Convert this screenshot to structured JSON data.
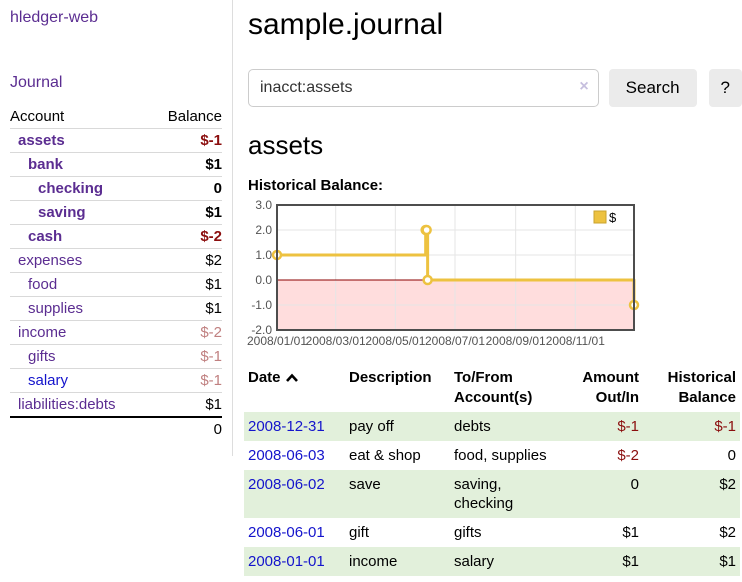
{
  "colors": {
    "purple": "#5b2d91",
    "blue_link": "#1414cc",
    "maroon": "#8b0e0e",
    "rose": "#c08080",
    "lavender": "#c6bfde",
    "stripe_green": "#e2f0db",
    "chart_gold": "#EDC240",
    "chart_gold_border": "#c9a32e",
    "chart_border": "#4d4d4d",
    "gridline": "#e5e5e5",
    "tick_text": "#545454",
    "negative_fill": "#ffdddd",
    "zero_line": "#8b0000"
  },
  "sidebar": {
    "app_title": "hledger-web",
    "journal_link": "Journal",
    "accounts_header": {
      "account": "Account",
      "balance": "Balance"
    },
    "accounts": [
      {
        "name": "assets",
        "indent": 1,
        "bold": true,
        "balance": "$-1",
        "balance_color": "maroon"
      },
      {
        "name": "bank",
        "indent": 2,
        "bold": true,
        "balance": "$1"
      },
      {
        "name": "checking",
        "indent": 3,
        "bold": true,
        "balance": "0"
      },
      {
        "name": "saving",
        "indent": 3,
        "bold": true,
        "balance": "$1"
      },
      {
        "name": "cash",
        "indent": 2,
        "bold": true,
        "balance": "$-2",
        "balance_color": "maroon"
      },
      {
        "name": "expenses",
        "indent": 1,
        "bold": false,
        "balance": "$2"
      },
      {
        "name": "food",
        "indent": 2,
        "bold": false,
        "balance": "$1"
      },
      {
        "name": "supplies",
        "indent": 2,
        "bold": false,
        "balance": "$1"
      },
      {
        "name": "income",
        "indent": 1,
        "bold": false,
        "balance": "$-2",
        "balance_color": "rose"
      },
      {
        "name": "gifts",
        "indent": 2,
        "bold": false,
        "balance": "$-1",
        "balance_color": "rose"
      },
      {
        "name": "salary",
        "indent": 2,
        "bold": false,
        "balance": "$-1",
        "balance_color": "rose",
        "link_color": "blue"
      },
      {
        "name": "liabilities:debts",
        "indent": 1,
        "bold": false,
        "balance": "$1"
      }
    ],
    "total": "0"
  },
  "main": {
    "title": "sample.journal",
    "search": {
      "value": "inacct:assets",
      "clear_icon": "×",
      "button_label": "Search",
      "help_label": "?"
    },
    "account_heading": "assets",
    "chart_label": "Historical Balance:"
  },
  "chart_data": {
    "type": "line",
    "step": true,
    "title": "Historical Balance",
    "xlim": [
      "2008-01-01",
      "2008-12-31"
    ],
    "ylim": [
      -2,
      3
    ],
    "series": [
      {
        "name": "$",
        "color": "#EDC240",
        "points": [
          [
            "2008-01-01",
            1
          ],
          [
            "2008-06-01",
            2
          ],
          [
            "2008-06-02",
            2
          ],
          [
            "2008-06-03",
            0
          ],
          [
            "2008-12-31",
            -1
          ]
        ]
      }
    ],
    "x_ticks": [
      {
        "date": "2008-01-01",
        "label": "2008/01/01"
      },
      {
        "date": "2008-03-01",
        "label": "2008/03/01"
      },
      {
        "date": "2008-05-01",
        "label": "2008/05/01"
      },
      {
        "date": "2008-07-01",
        "label": "2008/07/01"
      },
      {
        "date": "2008-09-01",
        "label": "2008/09/01"
      },
      {
        "date": "2008-11-01",
        "label": "2008/11/01"
      }
    ],
    "y_ticks": [
      {
        "v": 3,
        "label": "3.0"
      },
      {
        "v": 2,
        "label": "2.0"
      },
      {
        "v": 1,
        "label": "1.0"
      },
      {
        "v": 0,
        "label": "0.0"
      },
      {
        "v": -1,
        "label": "-1.0"
      },
      {
        "v": -2,
        "label": "-2.0"
      }
    ],
    "legend": {
      "label": "$",
      "position": "top-right"
    },
    "grid": true
  },
  "register": {
    "headers": [
      {
        "l1": "Date",
        "l2": ""
      },
      {
        "l1": "Description",
        "l2": ""
      },
      {
        "l1": "To/From",
        "l2": "Account(s)"
      },
      {
        "l1": "Amount",
        "l2": "Out/In"
      },
      {
        "l1": "Historical",
        "l2": "Balance"
      }
    ],
    "sort_icon": "chevron-up",
    "rows": [
      {
        "date": "2008-12-31",
        "description": "pay off",
        "accounts": "debts",
        "amount": "$-1",
        "amount_color": "maroon",
        "balance": "$-1",
        "balance_color": "maroon"
      },
      {
        "date": "2008-06-03",
        "description": "eat & shop",
        "accounts": "food, supplies",
        "amount": "$-2",
        "amount_color": "maroon",
        "balance": "0"
      },
      {
        "date": "2008-06-02",
        "description": "save",
        "accounts": "saving,\nchecking",
        "amount": "0",
        "balance": "$2"
      },
      {
        "date": "2008-06-01",
        "description": "gift",
        "accounts": "gifts",
        "amount": "$1",
        "balance": "$2"
      },
      {
        "date": "2008-01-01",
        "description": "income",
        "accounts": "salary",
        "amount": "$1",
        "balance": "$1"
      }
    ]
  }
}
